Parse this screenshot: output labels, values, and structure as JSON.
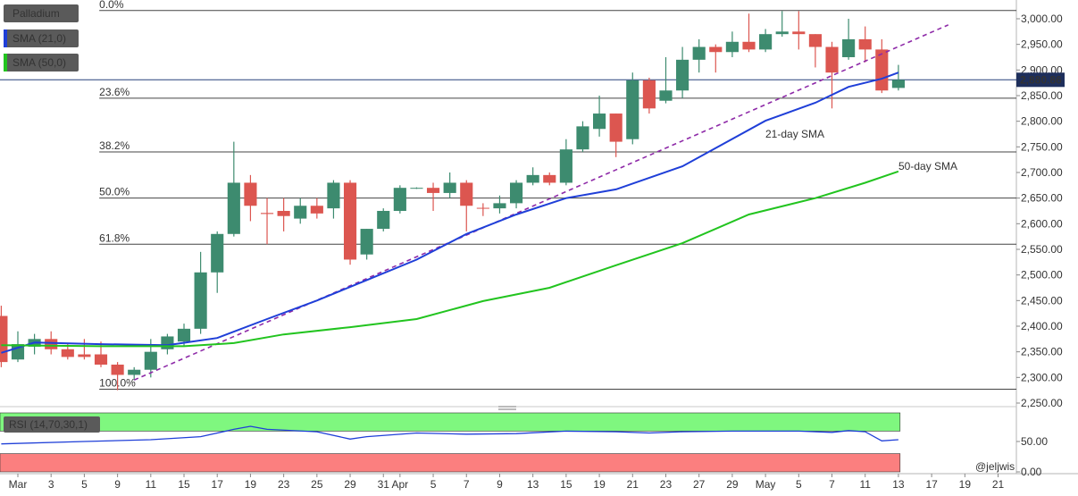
{
  "chart_data": {
    "type": "candlestick",
    "title": "Palladium",
    "up_color": "#3d8b6f",
    "down_color": "#dc5650",
    "xlim": [
      -1.075,
      60.1
    ],
    "ylim": [
      2246.5,
      3036.6
    ],
    "yticks": [
      {
        "value": 3000,
        "label": "3,000.00"
      },
      {
        "value": 2950,
        "label": "2,950.00"
      },
      {
        "value": 2900,
        "label": "2,900.00"
      },
      {
        "value": 2850,
        "label": "2,850.00"
      },
      {
        "value": 2800,
        "label": "2,800.00"
      },
      {
        "value": 2750,
        "label": "2,750.00"
      },
      {
        "value": 2700,
        "label": "2,700.00"
      },
      {
        "value": 2650,
        "label": "2,650.00"
      },
      {
        "value": 2600,
        "label": "2,600.00"
      },
      {
        "value": 2550,
        "label": "2,550.00"
      },
      {
        "value": 2500,
        "label": "2,500.00"
      },
      {
        "value": 2450,
        "label": "2,450.00"
      },
      {
        "value": 2400,
        "label": "2,400.00"
      },
      {
        "value": 2350,
        "label": "2,350.00"
      },
      {
        "value": 2300,
        "label": "2,300.00"
      },
      {
        "value": 2250,
        "label": "2,250.00"
      }
    ],
    "xticks": [
      {
        "value": 0,
        "label": "Mar"
      },
      {
        "value": 2,
        "label": "3"
      },
      {
        "value": 4,
        "label": "5"
      },
      {
        "value": 6,
        "label": "9"
      },
      {
        "value": 8,
        "label": "11"
      },
      {
        "value": 10,
        "label": "15"
      },
      {
        "value": 12,
        "label": "17"
      },
      {
        "value": 14,
        "label": "19"
      },
      {
        "value": 16,
        "label": "23"
      },
      {
        "value": 18,
        "label": "25"
      },
      {
        "value": 20,
        "label": "29"
      },
      {
        "value": 22,
        "label": "31"
      },
      {
        "value": 23,
        "label": "Apr"
      },
      {
        "value": 25,
        "label": "5"
      },
      {
        "value": 27,
        "label": "7"
      },
      {
        "value": 29,
        "label": "9"
      },
      {
        "value": 31,
        "label": "13"
      },
      {
        "value": 33,
        "label": "15"
      },
      {
        "value": 35,
        "label": "19"
      },
      {
        "value": 37,
        "label": "21"
      },
      {
        "value": 39,
        "label": "23"
      },
      {
        "value": 41,
        "label": "27"
      },
      {
        "value": 43,
        "label": "29"
      },
      {
        "value": 45,
        "label": "May"
      },
      {
        "value": 47,
        "label": "5"
      },
      {
        "value": 49,
        "label": "7"
      },
      {
        "value": 51,
        "label": "11"
      },
      {
        "value": 53,
        "label": "13"
      },
      {
        "value": 55,
        "label": "17"
      },
      {
        "value": 57,
        "label": "19"
      },
      {
        "value": 59,
        "label": "21"
      }
    ],
    "last_price": {
      "value": 2880.86,
      "label": "2,880.86"
    },
    "candles": [
      {
        "x": -1,
        "open": 2420,
        "high": 2440,
        "low": 2320,
        "close": 2330
      },
      {
        "x": 0,
        "open": 2335,
        "high": 2390,
        "low": 2330,
        "close": 2365
      },
      {
        "x": 1,
        "open": 2360,
        "high": 2385,
        "low": 2345,
        "close": 2375
      },
      {
        "x": 2,
        "open": 2375,
        "high": 2390,
        "low": 2345,
        "close": 2355
      },
      {
        "x": 3,
        "open": 2355,
        "high": 2365,
        "low": 2335,
        "close": 2340
      },
      {
        "x": 4,
        "open": 2345,
        "high": 2375,
        "low": 2335,
        "close": 2340
      },
      {
        "x": 5,
        "open": 2345,
        "high": 2370,
        "low": 2320,
        "close": 2325
      },
      {
        "x": 6,
        "open": 2325,
        "high": 2330,
        "low": 2275,
        "close": 2305
      },
      {
        "x": 7,
        "open": 2305,
        "high": 2320,
        "low": 2295,
        "close": 2315
      },
      {
        "x": 8,
        "open": 2315,
        "high": 2375,
        "low": 2300,
        "close": 2350
      },
      {
        "x": 9,
        "open": 2355,
        "high": 2385,
        "low": 2345,
        "close": 2380
      },
      {
        "x": 10,
        "open": 2370,
        "high": 2405,
        "low": 2360,
        "close": 2395
      },
      {
        "x": 11,
        "open": 2395,
        "high": 2545,
        "low": 2385,
        "close": 2505
      },
      {
        "x": 12,
        "open": 2505,
        "high": 2585,
        "low": 2465,
        "close": 2580
      },
      {
        "x": 13,
        "open": 2580,
        "high": 2760,
        "low": 2575,
        "close": 2680
      },
      {
        "x": 14,
        "open": 2680,
        "high": 2695,
        "low": 2605,
        "close": 2635
      },
      {
        "x": 15,
        "open": 2621,
        "high": 2650,
        "low": 2560,
        "close": 2619
      },
      {
        "x": 16,
        "open": 2625,
        "high": 2650,
        "low": 2585,
        "close": 2615
      },
      {
        "x": 17,
        "open": 2610,
        "high": 2650,
        "low": 2600,
        "close": 2635
      },
      {
        "x": 18,
        "open": 2635,
        "high": 2650,
        "low": 2610,
        "close": 2620
      },
      {
        "x": 19,
        "open": 2630,
        "high": 2685,
        "low": 2610,
        "close": 2680
      },
      {
        "x": 20,
        "open": 2680,
        "high": 2685,
        "low": 2520,
        "close": 2530
      },
      {
        "x": 21,
        "open": 2540,
        "high": 2590,
        "low": 2530,
        "close": 2590
      },
      {
        "x": 22,
        "open": 2590,
        "high": 2630,
        "low": 2585,
        "close": 2625
      },
      {
        "x": 23,
        "open": 2625,
        "high": 2675,
        "low": 2620,
        "close": 2670
      },
      {
        "x": 24,
        "open": 2669,
        "high": 2671,
        "low": 2668,
        "close": 2670
      },
      {
        "x": 25,
        "open": 2670,
        "high": 2680,
        "low": 2625,
        "close": 2660
      },
      {
        "x": 26,
        "open": 2660,
        "high": 2700,
        "low": 2650,
        "close": 2680
      },
      {
        "x": 27,
        "open": 2680,
        "high": 2685,
        "low": 2585,
        "close": 2635
      },
      {
        "x": 28,
        "open": 2631,
        "high": 2640,
        "low": 2615,
        "close": 2630
      },
      {
        "x": 29,
        "open": 2630,
        "high": 2655,
        "low": 2620,
        "close": 2640
      },
      {
        "x": 30,
        "open": 2640,
        "high": 2685,
        "low": 2630,
        "close": 2680
      },
      {
        "x": 31,
        "open": 2680,
        "high": 2710,
        "low": 2675,
        "close": 2695
      },
      {
        "x": 32,
        "open": 2695,
        "high": 2700,
        "low": 2675,
        "close": 2680
      },
      {
        "x": 33,
        "open": 2680,
        "high": 2765,
        "low": 2675,
        "close": 2745
      },
      {
        "x": 34,
        "open": 2745,
        "high": 2800,
        "low": 2740,
        "close": 2790
      },
      {
        "x": 35,
        "open": 2785,
        "high": 2850,
        "low": 2770,
        "close": 2815
      },
      {
        "x": 36,
        "open": 2815,
        "high": 2815,
        "low": 2730,
        "close": 2760
      },
      {
        "x": 37,
        "open": 2765,
        "high": 2895,
        "low": 2755,
        "close": 2880
      },
      {
        "x": 38,
        "open": 2880,
        "high": 2885,
        "low": 2815,
        "close": 2825
      },
      {
        "x": 39,
        "open": 2840,
        "high": 2925,
        "low": 2835,
        "close": 2860
      },
      {
        "x": 40,
        "open": 2860,
        "high": 2945,
        "low": 2845,
        "close": 2920
      },
      {
        "x": 41,
        "open": 2920,
        "high": 2960,
        "low": 2895,
        "close": 2945
      },
      {
        "x": 42,
        "open": 2945,
        "high": 2950,
        "low": 2895,
        "close": 2935
      },
      {
        "x": 43,
        "open": 2935,
        "high": 2975,
        "low": 2925,
        "close": 2955
      },
      {
        "x": 44,
        "open": 2955,
        "high": 3010,
        "low": 2935,
        "close": 2940
      },
      {
        "x": 45,
        "open": 2940,
        "high": 2980,
        "low": 2935,
        "close": 2970
      },
      {
        "x": 46,
        "open": 2970,
        "high": 3015,
        "low": 2965,
        "close": 2975
      },
      {
        "x": 47,
        "open": 2975,
        "high": 3015,
        "low": 2940,
        "close": 2970
      },
      {
        "x": 48,
        "open": 2970,
        "high": 2970,
        "low": 2905,
        "close": 2945
      },
      {
        "x": 49,
        "open": 2945,
        "high": 2955,
        "low": 2825,
        "close": 2895
      },
      {
        "x": 50,
        "open": 2925,
        "high": 3000,
        "low": 2920,
        "close": 2960
      },
      {
        "x": 51,
        "open": 2960,
        "high": 2985,
        "low": 2915,
        "close": 2940
      },
      {
        "x": 52,
        "open": 2940,
        "high": 2960,
        "low": 2855,
        "close": 2860
      },
      {
        "x": 53,
        "open": 2865,
        "high": 2910,
        "low": 2860,
        "close": 2880.86
      }
    ],
    "series": [
      {
        "name": "SMA (21,0)",
        "color": "#1f3fd8",
        "x": [
          -1,
          1,
          5,
          9,
          12,
          15,
          18,
          21,
          24,
          27,
          30,
          33,
          36,
          40,
          45,
          48,
          50,
          52,
          53
        ],
        "values": [
          2348,
          2368,
          2365,
          2363,
          2377,
          2414,
          2450,
          2490,
          2530,
          2580,
          2618,
          2650,
          2667,
          2712,
          2801,
          2836,
          2867,
          2883,
          2895
        ]
      },
      {
        "name": "SMA (50,0)",
        "color": "#22c41f",
        "x": [
          -1,
          5,
          10,
          13,
          16,
          20,
          24,
          28,
          32,
          36,
          40,
          44,
          48,
          51,
          53
        ],
        "values": [
          2363,
          2361,
          2361,
          2367,
          2384,
          2398,
          2414,
          2449,
          2475,
          2519,
          2562,
          2618,
          2650,
          2680,
          2702
        ]
      }
    ],
    "trendline": {
      "color": "#8e2aa8",
      "x": [
        7,
        56
      ],
      "values": [
        2295,
        2988
      ]
    },
    "fibonacci": [
      {
        "label": "0.0%",
        "value": 3016
      },
      {
        "label": "23.6%",
        "value": 2845
      },
      {
        "label": "38.2%",
        "value": 2740
      },
      {
        "label": "50.0%",
        "value": 2650
      },
      {
        "label": "61.8%",
        "value": 2560
      },
      {
        "label": "100.0%",
        "value": 2277
      }
    ],
    "annotations": [
      {
        "text": "21-day SMA",
        "color": "#5566d8"
      },
      {
        "text": "50-day SMA",
        "color": "#22b41f"
      }
    ],
    "rsi": {
      "name": "RSI (14,70,30,1)",
      "color": "#1f3fd8",
      "overbought": 70,
      "oversold": 30,
      "ylim": [
        0,
        100
      ],
      "yticks": [
        {
          "value": 50,
          "label": "50.00"
        },
        {
          "value": 0,
          "label": "0.00"
        }
      ],
      "x": [
        -1,
        4,
        8,
        11,
        13,
        14,
        15,
        18,
        20,
        21,
        24,
        27,
        30,
        33,
        36,
        38,
        40,
        43,
        45,
        47,
        49,
        50,
        51,
        52,
        53
      ],
      "values": [
        46,
        50,
        53,
        58,
        70,
        75,
        70,
        66,
        54,
        58,
        64,
        62,
        63,
        67,
        66,
        64,
        66,
        67,
        67,
        67,
        65,
        68,
        66,
        51,
        53
      ]
    },
    "watermark": "@jeljwis"
  }
}
